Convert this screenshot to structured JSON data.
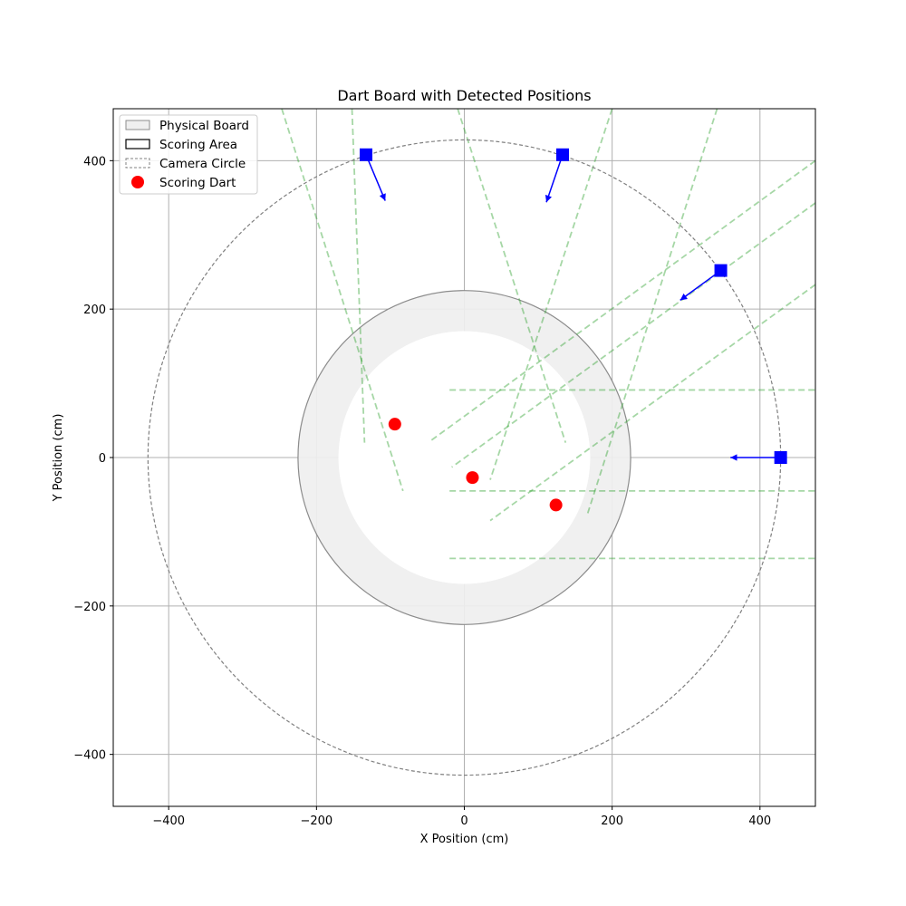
{
  "chart_data": {
    "type": "scatter",
    "title": "Dart Board with Detected Positions",
    "xlabel": "X Position (cm)",
    "ylabel": "Y Position (cm)",
    "xlim": [
      -475,
      475
    ],
    "ylim": [
      -470,
      470
    ],
    "xticks": [
      -400,
      -200,
      0,
      200,
      400
    ],
    "yticks": [
      -400,
      -200,
      0,
      200,
      400
    ],
    "xtick_labels": [
      "−400",
      "−200",
      "0",
      "200",
      "400"
    ],
    "ytick_labels": [
      "−400",
      "−200",
      "0",
      "200",
      "400"
    ],
    "grid": true,
    "legend_position": "top-left",
    "legend": [
      {
        "label": "Physical Board",
        "kind": "patch-gray"
      },
      {
        "label": "Scoring Area",
        "kind": "patch-black"
      },
      {
        "label": "Camera Circle",
        "kind": "patch-dashed"
      },
      {
        "label": "Scoring Dart",
        "kind": "marker-red"
      }
    ],
    "physical_board_radius": 225,
    "scoring_area_radius": 170,
    "camera_circle_radius": 428,
    "scoring_darts": [
      {
        "x": -94,
        "y": 45
      },
      {
        "x": 11,
        "y": -27
      },
      {
        "x": 124,
        "y": -64
      }
    ],
    "cameras": [
      {
        "x": -133,
        "y": 408,
        "dx": 26,
        "dy": -62
      },
      {
        "x": 133,
        "y": 408,
        "dx": -22,
        "dy": -64
      },
      {
        "x": 347,
        "y": 252,
        "dx": -55,
        "dy": -40
      },
      {
        "x": 428,
        "y": 0,
        "dx": -68,
        "dy": 0
      }
    ],
    "detection_lines": [
      {
        "x1": -247,
        "y1": 470,
        "x2": -83,
        "y2": -45
      },
      {
        "x1": -152,
        "y1": 470,
        "x2": -135,
        "y2": 20
      },
      {
        "x1": -9,
        "y1": 470,
        "x2": 137,
        "y2": 20
      },
      {
        "x1": 200,
        "y1": 470,
        "x2": 35,
        "y2": -30
      },
      {
        "x1": 342,
        "y1": 470,
        "x2": 167,
        "y2": -75
      },
      {
        "x1": 475,
        "y1": 400,
        "x2": -45,
        "y2": 23
      },
      {
        "x1": 475,
        "y1": 343,
        "x2": -17,
        "y2": -13
      },
      {
        "x1": 475,
        "y1": 233,
        "x2": 35,
        "y2": -85
      },
      {
        "x1": -20,
        "y1": 91,
        "x2": 475,
        "y2": 91
      },
      {
        "x1": -20,
        "y1": -45,
        "x2": 475,
        "y2": -45
      },
      {
        "x1": -20,
        "y1": -136,
        "x2": 475,
        "y2": -136
      }
    ],
    "colors": {
      "dart": "#ff0000",
      "camera": "#0000ff",
      "detection_line": "#2ca02c",
      "board_fill": "#efefef",
      "board_edge": "#8c8c8c",
      "camera_circle": "#808080",
      "grid": "#b0b0b0"
    }
  }
}
